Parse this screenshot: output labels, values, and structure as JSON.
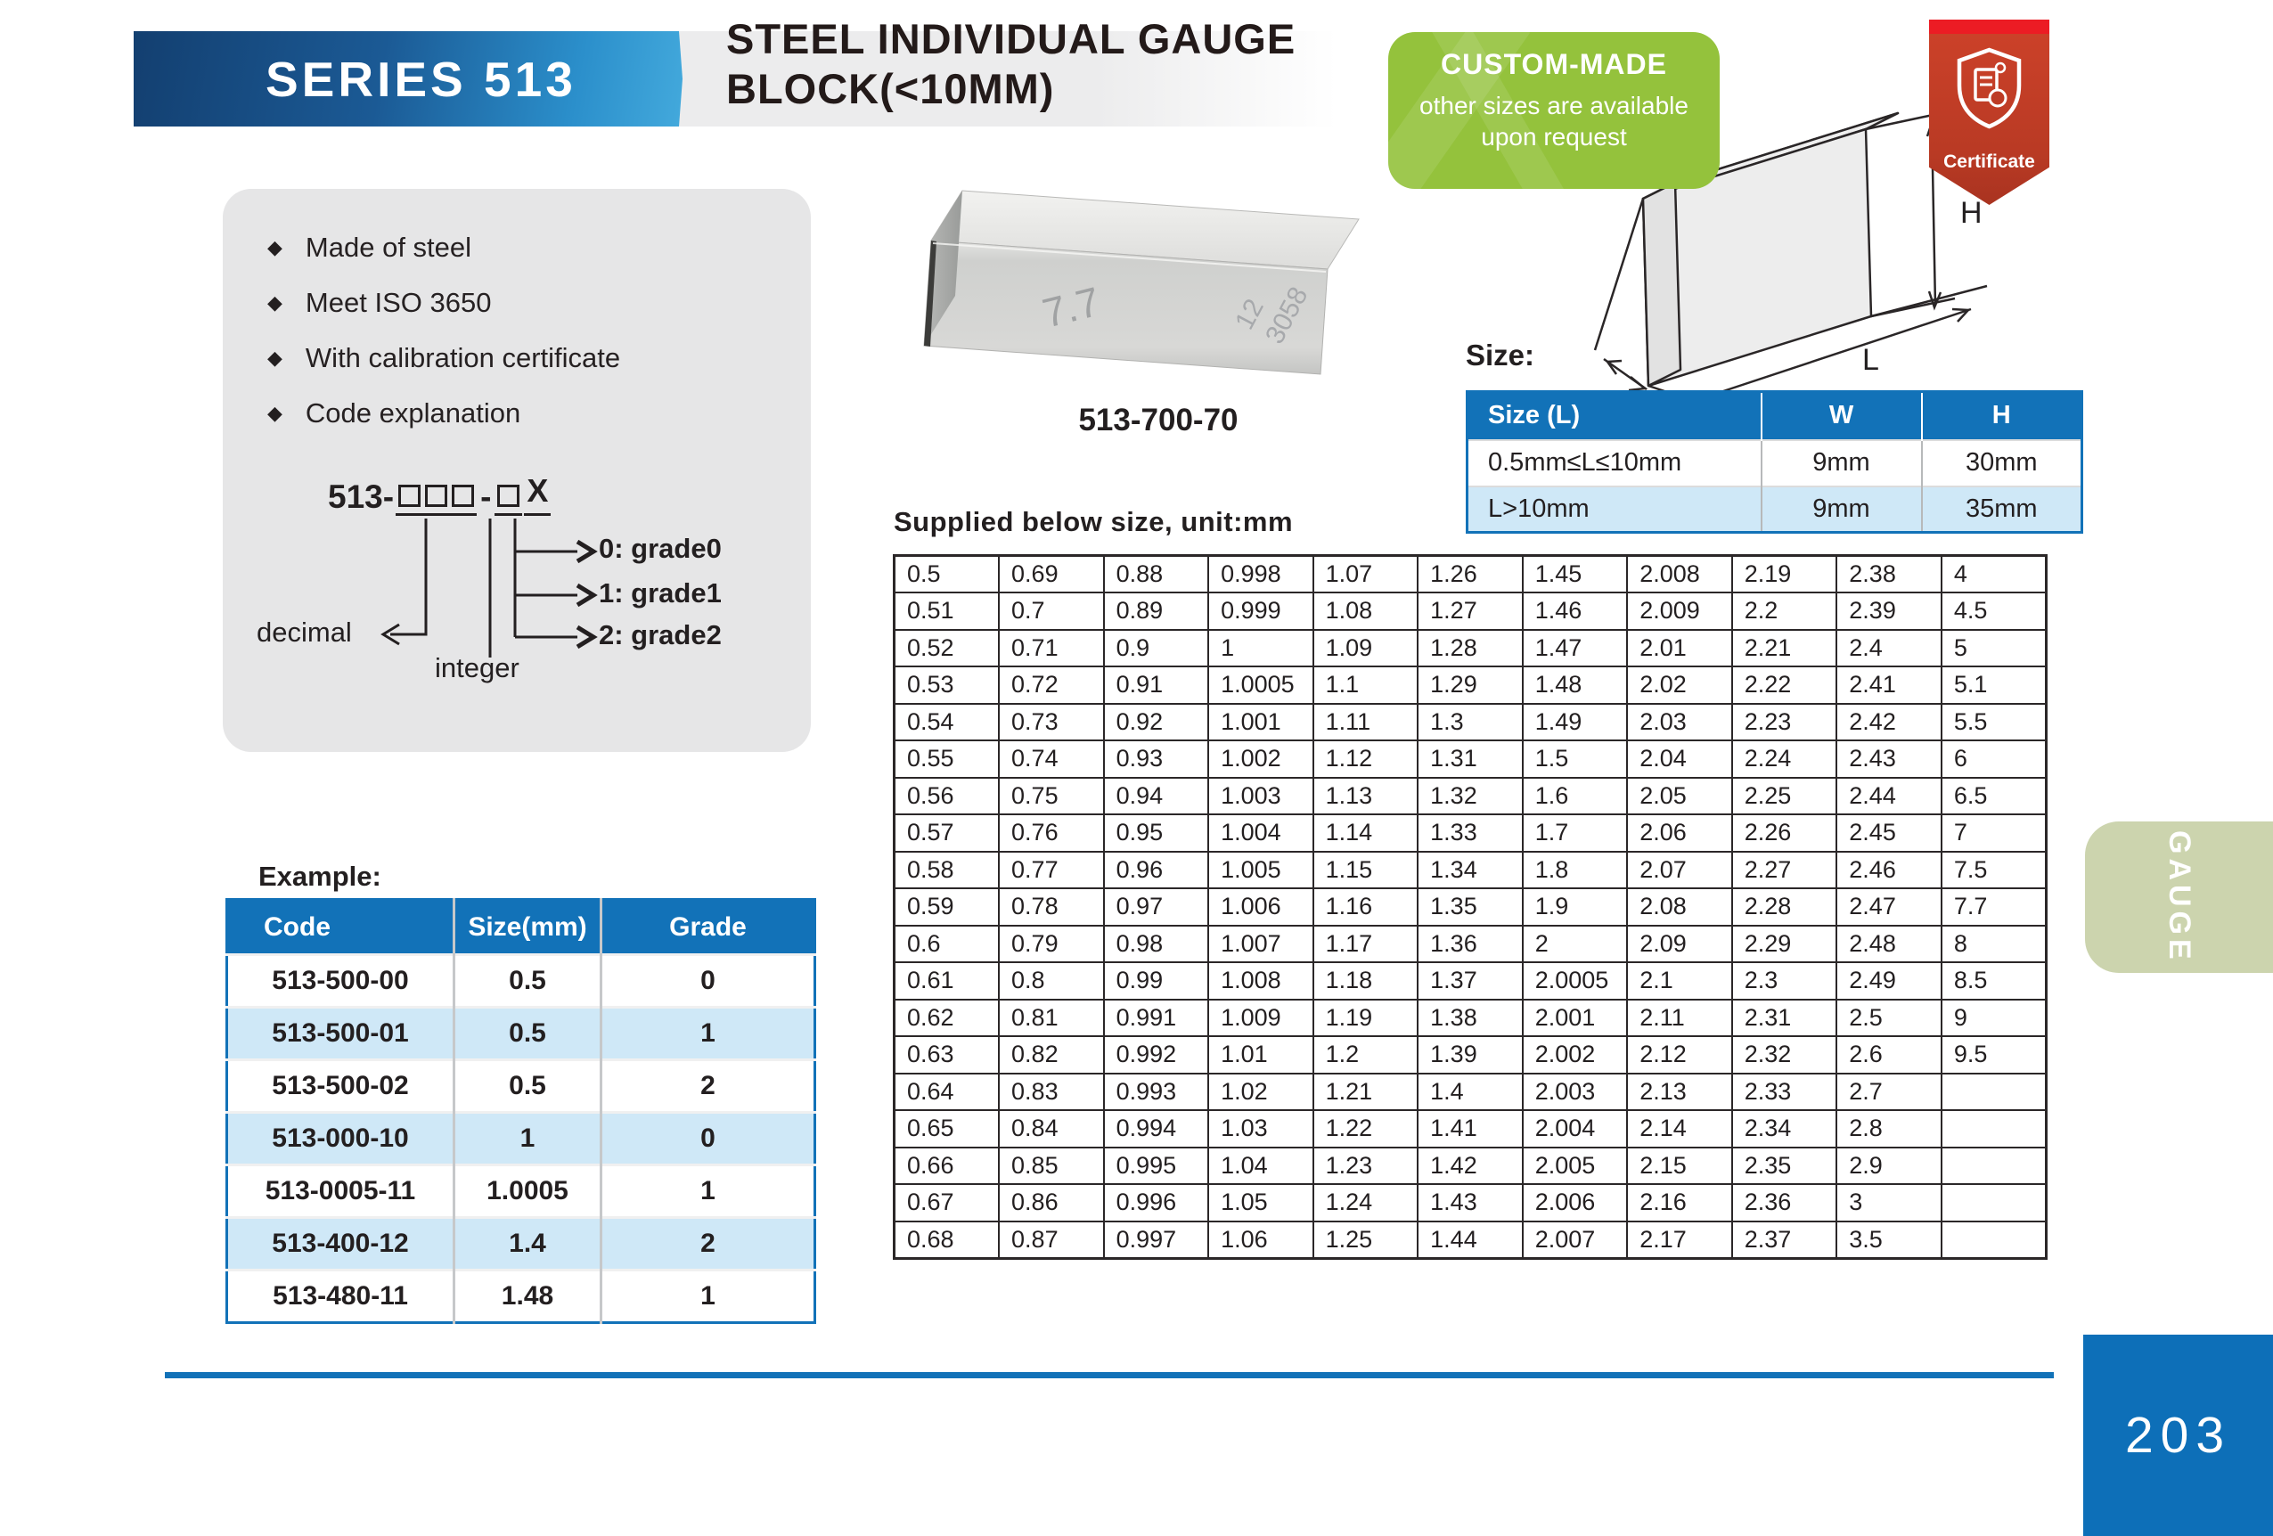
{
  "header": {
    "series": "SERIES 513",
    "title_line1": "STEEL INDIVIDUAL GAUGE",
    "title_line2": "BLOCK(<10MM)"
  },
  "custom_badge": {
    "title": "CUSTOM-MADE",
    "line1": "other sizes are available",
    "line2": "upon request"
  },
  "certificate": {
    "label": "Certificate"
  },
  "features": {
    "items": [
      "Made of steel",
      "Meet ISO 3650",
      "With calibration certificate",
      "Code explanation"
    ]
  },
  "code_diagram": {
    "prefix": "513-",
    "dash": "-",
    "suffix": "X",
    "decimal_label": "decimal",
    "integer_label": "integer",
    "grades": [
      "0: grade0",
      "1: grade1",
      "2: grade2"
    ]
  },
  "product": {
    "caption": "513-700-70",
    "marking_size": "7.7",
    "marking_pair": "12",
    "marking_serial": "3058"
  },
  "size_section": {
    "label": "Size:",
    "dims": {
      "w": "W",
      "h": "H",
      "l": "L"
    },
    "headers": [
      "Size (L)",
      "W",
      "H"
    ],
    "rows": [
      [
        "0.5mm≤L≤10mm",
        "9mm",
        "30mm"
      ],
      [
        "L>10mm",
        "9mm",
        "35mm"
      ]
    ]
  },
  "supplied": {
    "label": "Supplied below size, unit:mm",
    "columns": [
      [
        "0.5",
        "0.51",
        "0.52",
        "0.53",
        "0.54",
        "0.55",
        "0.56",
        "0.57",
        "0.58",
        "0.59",
        "0.6",
        "0.61",
        "0.62",
        "0.63",
        "0.64",
        "0.65",
        "0.66",
        "0.67",
        "0.68"
      ],
      [
        "0.69",
        "0.7",
        "0.71",
        "0.72",
        "0.73",
        "0.74",
        "0.75",
        "0.76",
        "0.77",
        "0.78",
        "0.79",
        "0.8",
        "0.81",
        "0.82",
        "0.83",
        "0.84",
        "0.85",
        "0.86",
        "0.87"
      ],
      [
        "0.88",
        "0.89",
        "0.9",
        "0.91",
        "0.92",
        "0.93",
        "0.94",
        "0.95",
        "0.96",
        "0.97",
        "0.98",
        "0.99",
        "0.991",
        "0.992",
        "0.993",
        "0.994",
        "0.995",
        "0.996",
        "0.997"
      ],
      [
        "0.998",
        "0.999",
        "1",
        "1.0005",
        "1.001",
        "1.002",
        "1.003",
        "1.004",
        "1.005",
        "1.006",
        "1.007",
        "1.008",
        "1.009",
        "1.01",
        "1.02",
        "1.03",
        "1.04",
        "1.05",
        "1.06"
      ],
      [
        "1.07",
        "1.08",
        "1.09",
        "1.1",
        "1.11",
        "1.12",
        "1.13",
        "1.14",
        "1.15",
        "1.16",
        "1.17",
        "1.18",
        "1.19",
        "1.2",
        "1.21",
        "1.22",
        "1.23",
        "1.24",
        "1.25"
      ],
      [
        "1.26",
        "1.27",
        "1.28",
        "1.29",
        "1.3",
        "1.31",
        "1.32",
        "1.33",
        "1.34",
        "1.35",
        "1.36",
        "1.37",
        "1.38",
        "1.39",
        "1.4",
        "1.41",
        "1.42",
        "1.43",
        "1.44"
      ],
      [
        "1.45",
        "1.46",
        "1.47",
        "1.48",
        "1.49",
        "1.5",
        "1.6",
        "1.7",
        "1.8",
        "1.9",
        "2",
        "2.0005",
        "2.001",
        "2.002",
        "2.003",
        "2.004",
        "2.005",
        "2.006",
        "2.007"
      ],
      [
        "2.008",
        "2.009",
        "2.01",
        "2.02",
        "2.03",
        "2.04",
        "2.05",
        "2.06",
        "2.07",
        "2.08",
        "2.09",
        "2.1",
        "2.11",
        "2.12",
        "2.13",
        "2.14",
        "2.15",
        "2.16",
        "2.17"
      ],
      [
        "2.19",
        "2.2",
        "2.21",
        "2.22",
        "2.23",
        "2.24",
        "2.25",
        "2.26",
        "2.27",
        "2.28",
        "2.29",
        "2.3",
        "2.31",
        "2.32",
        "2.33",
        "2.34",
        "2.35",
        "2.36",
        "2.37"
      ],
      [
        "2.38",
        "2.39",
        "2.4",
        "2.41",
        "2.42",
        "2.43",
        "2.44",
        "2.45",
        "2.46",
        "2.47",
        "2.48",
        "2.49",
        "2.5",
        "2.6",
        "2.7",
        "2.8",
        "2.9",
        "3",
        "3.5"
      ],
      [
        "4",
        "4.5",
        "5",
        "5.1",
        "5.5",
        "6",
        "6.5",
        "7",
        "7.5",
        "7.7",
        "8",
        "8.5",
        "9",
        "9.5",
        "",
        "",
        "",
        "",
        ""
      ]
    ]
  },
  "example": {
    "label": "Example:",
    "headers": [
      "Code",
      "Size(mm)",
      "Grade"
    ],
    "rows": [
      [
        "513-500-00",
        "0.5",
        "0"
      ],
      [
        "513-500-01",
        "0.5",
        "1"
      ],
      [
        "513-500-02",
        "0.5",
        "2"
      ],
      [
        "513-000-10",
        "1",
        "0"
      ],
      [
        "513-0005-11",
        "1.0005",
        "1"
      ],
      [
        "513-400-12",
        "1.4",
        "2"
      ],
      [
        "513-480-11",
        "1.48",
        "1"
      ]
    ]
  },
  "side_tab": {
    "label": "GAUGE"
  },
  "page": {
    "number": "203"
  },
  "colors": {
    "table_header_blue": "#1272b8",
    "row_light_blue": "#cfe8f7",
    "banner_blue_dark": "#133f70",
    "banner_blue_light": "#43a9dc",
    "badge_green": "#94c23c",
    "certificate_red": "#c23b27",
    "tab_sage": "#ccd4ae",
    "page_box_blue": "#0d6fb8"
  }
}
